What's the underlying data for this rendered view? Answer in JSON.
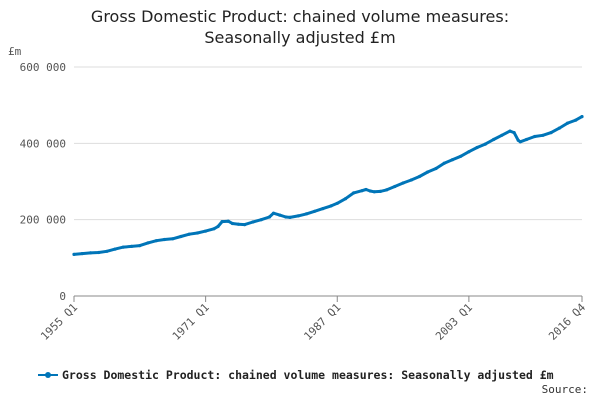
{
  "chart": {
    "title_line1": "Gross Domestic Product: chained volume measures:",
    "title_line2": "Seasonally adjusted £m",
    "source_label": "Source:"
  },
  "colors": {
    "series": "#0075b8",
    "grid": "#dddddd",
    "axis": "#888888"
  },
  "chart_data": {
    "type": "line",
    "title": "Gross Domestic Product: chained volume measures: Seasonally adjusted £m",
    "ylabel": "£m",
    "xlabel": "",
    "ylim": [
      0,
      600000
    ],
    "y_ticks": [
      {
        "value": 0,
        "label": "0"
      },
      {
        "value": 200000,
        "label": "200 000"
      },
      {
        "value": 400000,
        "label": "400 000"
      },
      {
        "value": 600000,
        "label": "600 000"
      }
    ],
    "x_ticks": [
      "1955 Q1",
      "1971 Q1",
      "1987 Q1",
      "2003 Q1",
      "2016 Q4"
    ],
    "x_range": [
      "1955 Q1",
      "2016 Q4"
    ],
    "grid": true,
    "legend": "bottom",
    "series": [
      {
        "name": "Gross Domestic Product: chained volume measures: Seasonally adjusted £m",
        "points": [
          [
            "1955 Q1",
            109000
          ],
          [
            "1956 Q1",
            111000
          ],
          [
            "1957 Q1",
            113000
          ],
          [
            "1958 Q1",
            114000
          ],
          [
            "1959 Q1",
            117000
          ],
          [
            "1960 Q1",
            123000
          ],
          [
            "1961 Q1",
            128000
          ],
          [
            "1962 Q1",
            130000
          ],
          [
            "1963 Q1",
            132000
          ],
          [
            "1964 Q1",
            139000
          ],
          [
            "1965 Q1",
            145000
          ],
          [
            "1966 Q1",
            148000
          ],
          [
            "1967 Q1",
            150000
          ],
          [
            "1968 Q1",
            156000
          ],
          [
            "1969 Q1",
            162000
          ],
          [
            "1970 Q1",
            165000
          ],
          [
            "1971 Q1",
            170000
          ],
          [
            "1972 Q1",
            176000
          ],
          [
            "1972 Q3",
            182000
          ],
          [
            "1973 Q1",
            195000
          ],
          [
            "1973 Q4",
            196000
          ],
          [
            "1974 Q2",
            190000
          ],
          [
            "1975 Q1",
            188000
          ],
          [
            "1975 Q4",
            187000
          ],
          [
            "1976 Q4",
            194000
          ],
          [
            "1977 Q4",
            200000
          ],
          [
            "1978 Q4",
            207000
          ],
          [
            "1979 Q2",
            217000
          ],
          [
            "1980 Q1",
            212000
          ],
          [
            "1980 Q4",
            207000
          ],
          [
            "1981 Q2",
            206000
          ],
          [
            "1982 Q2",
            210000
          ],
          [
            "1983 Q2",
            215000
          ],
          [
            "1984 Q2",
            222000
          ],
          [
            "1985 Q2",
            229000
          ],
          [
            "1986 Q2",
            236000
          ],
          [
            "1987 Q1",
            243000
          ],
          [
            "1988 Q1",
            255000
          ],
          [
            "1989 Q1",
            270000
          ],
          [
            "1990 Q1",
            276000
          ],
          [
            "1990 Q3",
            279000
          ],
          [
            "1991 Q1",
            275000
          ],
          [
            "1991 Q3",
            273000
          ],
          [
            "1992 Q2",
            274000
          ],
          [
            "1993 Q1",
            278000
          ],
          [
            "1994 Q1",
            287000
          ],
          [
            "1995 Q1",
            296000
          ],
          [
            "1996 Q1",
            304000
          ],
          [
            "1997 Q1",
            313000
          ],
          [
            "1998 Q1",
            325000
          ],
          [
            "1999 Q1",
            334000
          ],
          [
            "2000 Q1",
            348000
          ],
          [
            "2001 Q1",
            357000
          ],
          [
            "2002 Q1",
            366000
          ],
          [
            "2003 Q1",
            378000
          ],
          [
            "2004 Q1",
            389000
          ],
          [
            "2005 Q1",
            398000
          ],
          [
            "2006 Q1",
            410000
          ],
          [
            "2007 Q1",
            421000
          ],
          [
            "2008 Q1",
            432000
          ],
          [
            "2008 Q3",
            428000
          ],
          [
            "2009 Q1",
            408000
          ],
          [
            "2009 Q2",
            404000
          ],
          [
            "2010 Q1",
            410000
          ],
          [
            "2011 Q1",
            418000
          ],
          [
            "2012 Q1",
            421000
          ],
          [
            "2013 Q1",
            428000
          ],
          [
            "2014 Q1",
            440000
          ],
          [
            "2015 Q1",
            453000
          ],
          [
            "2016 Q1",
            461000
          ],
          [
            "2016 Q4",
            470000
          ]
        ]
      }
    ]
  }
}
